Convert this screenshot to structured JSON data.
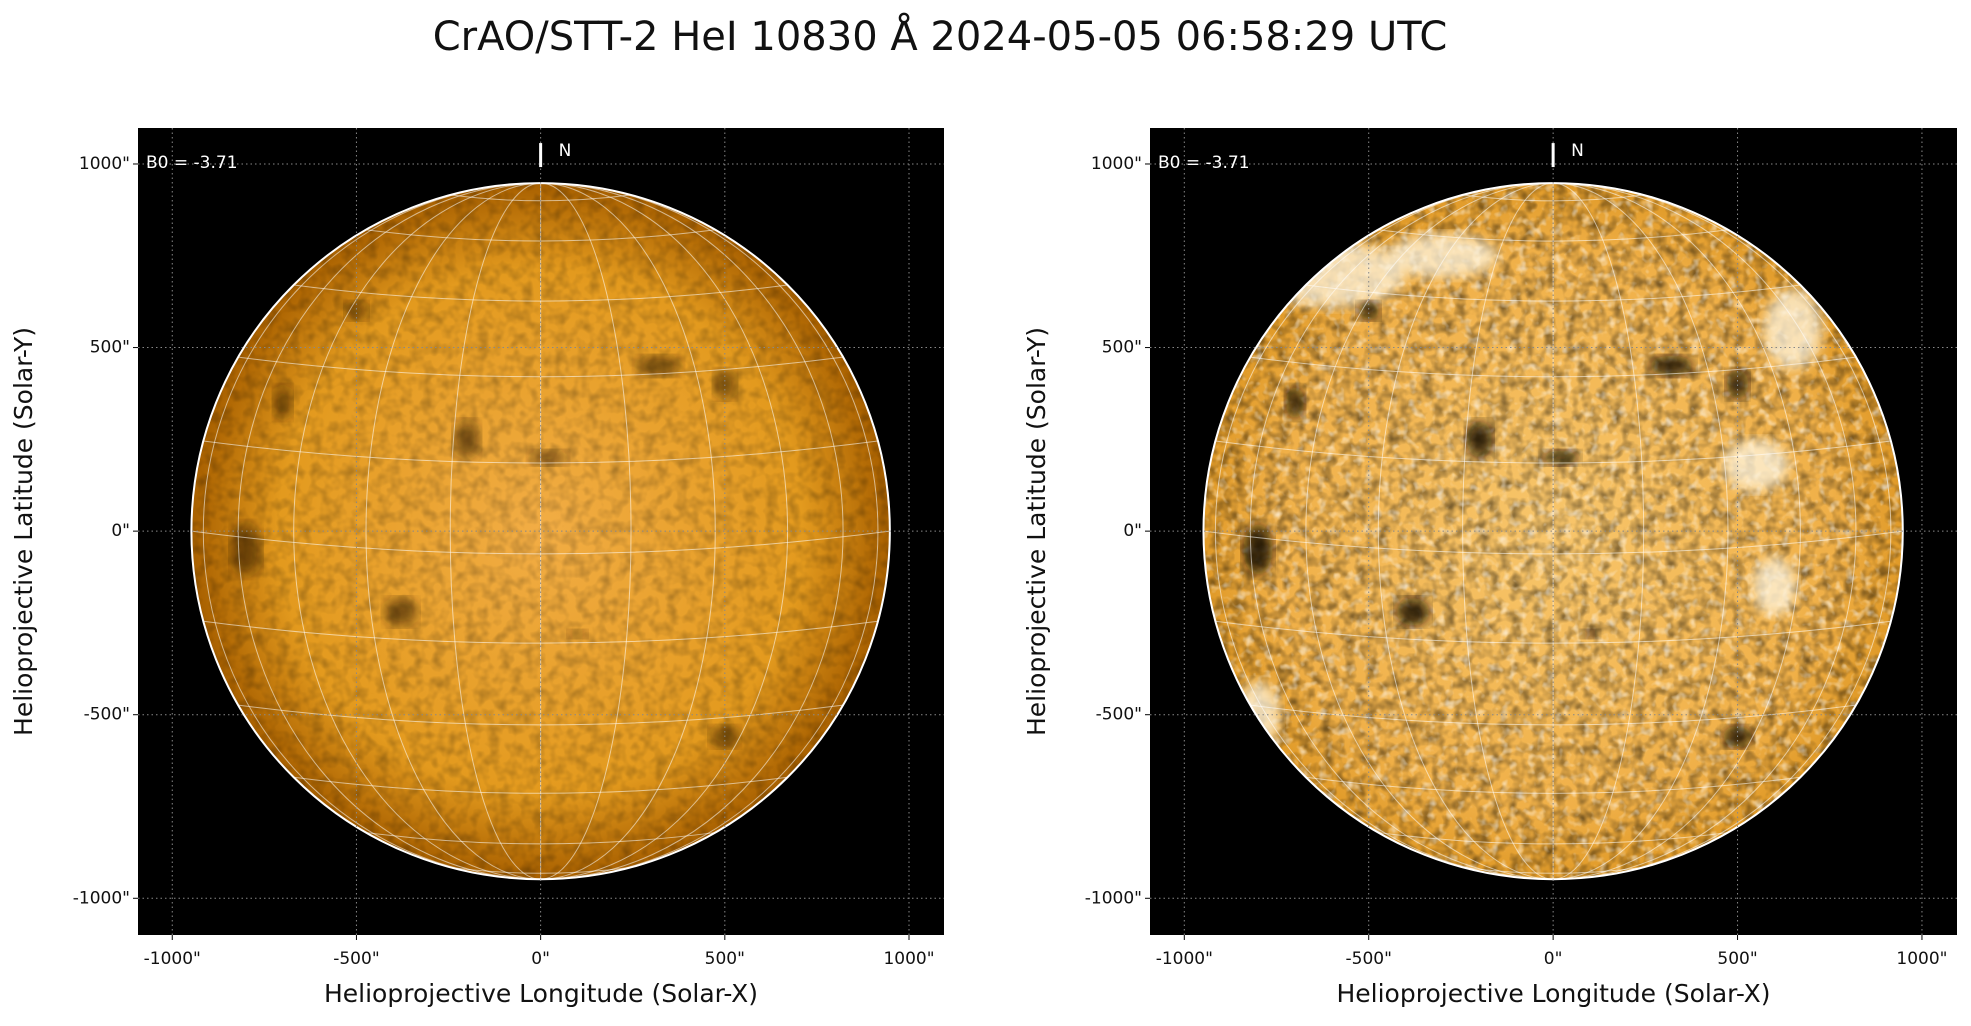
{
  "title": "CrAO/STT-2 HeI 10830 Å 2024-05-05 06:58:29 UTC",
  "chart_data": [
    {
      "type": "image",
      "xlabel": "Helioprojective Longitude (Solar-X)",
      "ylabel": "Helioprojective Latitude (Solar-Y)",
      "xlim": [
        -1093,
        1095
      ],
      "ylim": [
        -1100,
        1098
      ],
      "xticks": [
        {
          "value": -1000,
          "label": "-1000\""
        },
        {
          "value": -500,
          "label": "-500\""
        },
        {
          "value": 0,
          "label": "0\""
        },
        {
          "value": 500,
          "label": "500\""
        },
        {
          "value": 1000,
          "label": "1000\""
        }
      ],
      "yticks": [
        {
          "value": -1000,
          "label": "-1000\""
        },
        {
          "value": -500,
          "label": "-500\""
        },
        {
          "value": 0,
          "label": "0\""
        },
        {
          "value": 500,
          "label": "500\""
        },
        {
          "value": 1000,
          "label": "1000\""
        }
      ],
      "grid": true,
      "solar_radius": 948,
      "b0_label": "B0 = -3.71",
      "north_label": "N",
      "contrast": "normal"
    },
    {
      "type": "image",
      "xlabel": "Helioprojective Longitude (Solar-X)",
      "ylabel": "Helioprojective Latitude (Solar-Y)",
      "xlim": [
        -1093,
        1095
      ],
      "ylim": [
        -1100,
        1098
      ],
      "xticks": [
        {
          "value": -1000,
          "label": "-1000\""
        },
        {
          "value": -500,
          "label": "-500\""
        },
        {
          "value": 0,
          "label": "0\""
        },
        {
          "value": 500,
          "label": "500\""
        },
        {
          "value": 1000,
          "label": "1000\""
        }
      ],
      "yticks": [
        {
          "value": -1000,
          "label": "-1000\""
        },
        {
          "value": -500,
          "label": "-500\""
        },
        {
          "value": 0,
          "label": "0\""
        },
        {
          "value": 500,
          "label": "500\""
        },
        {
          "value": 1000,
          "label": "1000\""
        }
      ],
      "grid": true,
      "solar_radius": 948,
      "b0_label": "B0 = -3.71",
      "north_label": "N",
      "contrast": "high"
    }
  ]
}
